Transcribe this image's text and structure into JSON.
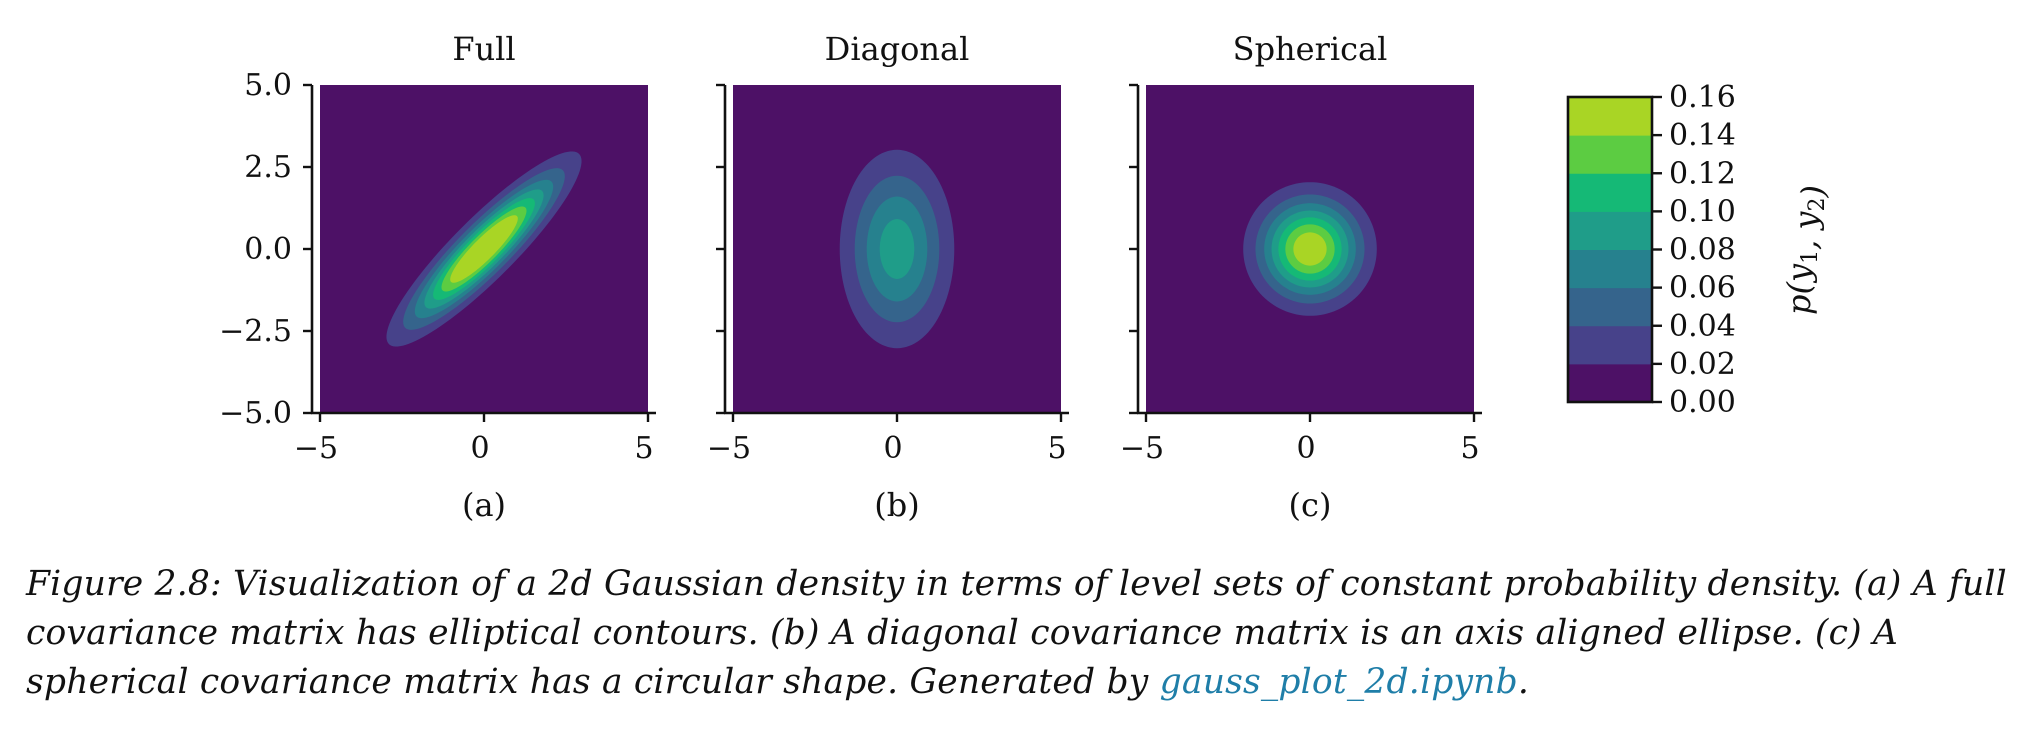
{
  "chart_data": [
    {
      "type": "heatmap",
      "panel_id": "a",
      "title": "Full",
      "sublabel": "(a)",
      "xlim": [
        -5,
        5
      ],
      "ylim": [
        -5,
        5
      ],
      "xticks": [
        -5,
        0,
        5
      ],
      "yticks": [
        -5.0,
        -2.5,
        0.0,
        2.5,
        5.0
      ],
      "xtick_labels": [
        "−5",
        "0",
        "5"
      ],
      "ytick_labels": [
        "−5.0",
        "−2.5",
        "0.0",
        "2.5",
        "5.0"
      ],
      "mean": [
        0,
        0
      ],
      "covariance": [
        [
          2.0,
          1.8
        ],
        [
          1.8,
          2.0
        ]
      ],
      "grid": false
    },
    {
      "type": "heatmap",
      "panel_id": "b",
      "title": "Diagonal",
      "sublabel": "(b)",
      "xlim": [
        -5,
        5
      ],
      "ylim": [
        -5,
        5
      ],
      "xticks": [
        -5,
        0,
        5
      ],
      "yticks": [
        -5.0,
        -2.5,
        0.0,
        2.5,
        5.0
      ],
      "xtick_labels": [
        "−5",
        "0",
        "5"
      ],
      "ytick_labels": [
        "",
        "",
        "",
        "",
        ""
      ],
      "mean": [
        0,
        0
      ],
      "covariance": [
        [
          1.0,
          0.0
        ],
        [
          0.0,
          3.0
        ]
      ],
      "grid": false
    },
    {
      "type": "heatmap",
      "panel_id": "c",
      "title": "Spherical",
      "sublabel": "(c)",
      "xlim": [
        -5,
        5
      ],
      "ylim": [
        -5,
        5
      ],
      "xticks": [
        -5,
        0,
        5
      ],
      "yticks": [
        -5.0,
        -2.5,
        0.0,
        2.5,
        5.0
      ],
      "xtick_labels": [
        "−5",
        "0",
        "5"
      ],
      "ytick_labels": [
        "",
        "",
        "",
        "",
        ""
      ],
      "mean": [
        0,
        0
      ],
      "covariance": [
        [
          1.0,
          0.0
        ],
        [
          0.0,
          1.0
        ]
      ],
      "grid": false
    }
  ],
  "colorbar": {
    "levels": [
      0.0,
      0.02,
      0.04,
      0.06,
      0.08,
      0.1,
      0.12,
      0.14,
      0.16
    ],
    "tick_labels": [
      "0.00",
      "0.02",
      "0.04",
      "0.06",
      "0.08",
      "0.10",
      "0.12",
      "0.14",
      "0.16"
    ],
    "colors": [
      "#4d1166",
      "#47428a",
      "#35648c",
      "#26818e",
      "#1f9d89",
      "#15b976",
      "#5ccc42",
      "#a9d525",
      "#dde30f"
    ],
    "label": "p(y1, y2)",
    "placement": "right"
  },
  "caption": {
    "text": "Figure 2.8: Visualization of a 2d Gaussian density in terms of level sets of constant probability density. (a) A full covariance matrix has elliptical contours. (b) A diagonal covariance matrix is an axis aligned ellipse. (c) A spherical covariance matrix has a circular shape. Generated by ",
    "link_text": "gauss_plot_2d.ipynb",
    "end": "."
  }
}
